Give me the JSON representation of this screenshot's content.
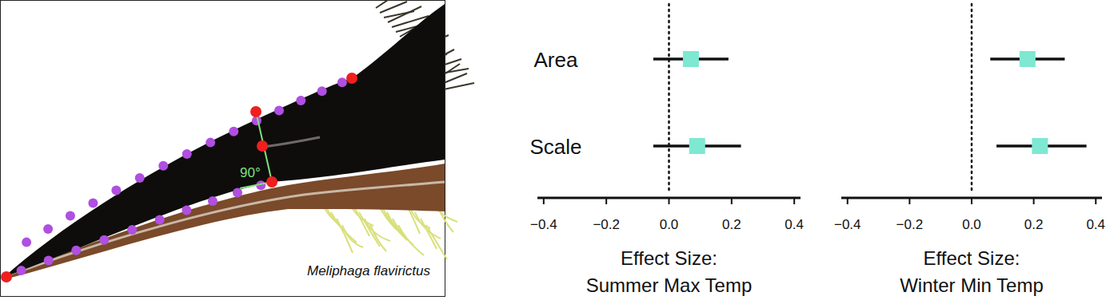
{
  "figure": {
    "species": "Meliphaga flavirictus",
    "angle_label": "90°"
  },
  "chart_data": [
    {
      "type": "forest",
      "orientation": "horizontal",
      "categories": [
        "Area",
        "Scale"
      ],
      "values": [
        0.07,
        0.09
      ],
      "lower": [
        -0.05,
        -0.05
      ],
      "upper": [
        0.19,
        0.23
      ],
      "xlabel": "Effect Size:\nSummer Max Temp",
      "xlim": [
        -0.42,
        0.42
      ],
      "xticks": [
        {
          "value": -0.4,
          "label": "−0.4"
        },
        {
          "value": -0.2,
          "label": "−0.2"
        },
        {
          "value": 0,
          "label": "0.0"
        },
        0.2,
        0.4
      ],
      "color": "#7ee8d2",
      "marker": "square"
    },
    {
      "type": "forest",
      "orientation": "horizontal",
      "categories": [
        "Area",
        "Scale"
      ],
      "values": [
        0.18,
        0.22
      ],
      "lower": [
        0.06,
        0.08
      ],
      "upper": [
        0.3,
        0.37
      ],
      "xlabel": "Effect Size:\nWinter Min Temp",
      "xlim": [
        -0.42,
        0.42
      ],
      "xticks": [
        {
          "value": -0.4,
          "label": "−0.4"
        },
        {
          "value": -0.2,
          "label": "−0.2"
        },
        {
          "value": 0,
          "label": "0.0"
        },
        0.2,
        0.4
      ],
      "color": "#7ee8d2",
      "marker": "square",
      "tick_labels": "x"
    }
  ]
}
